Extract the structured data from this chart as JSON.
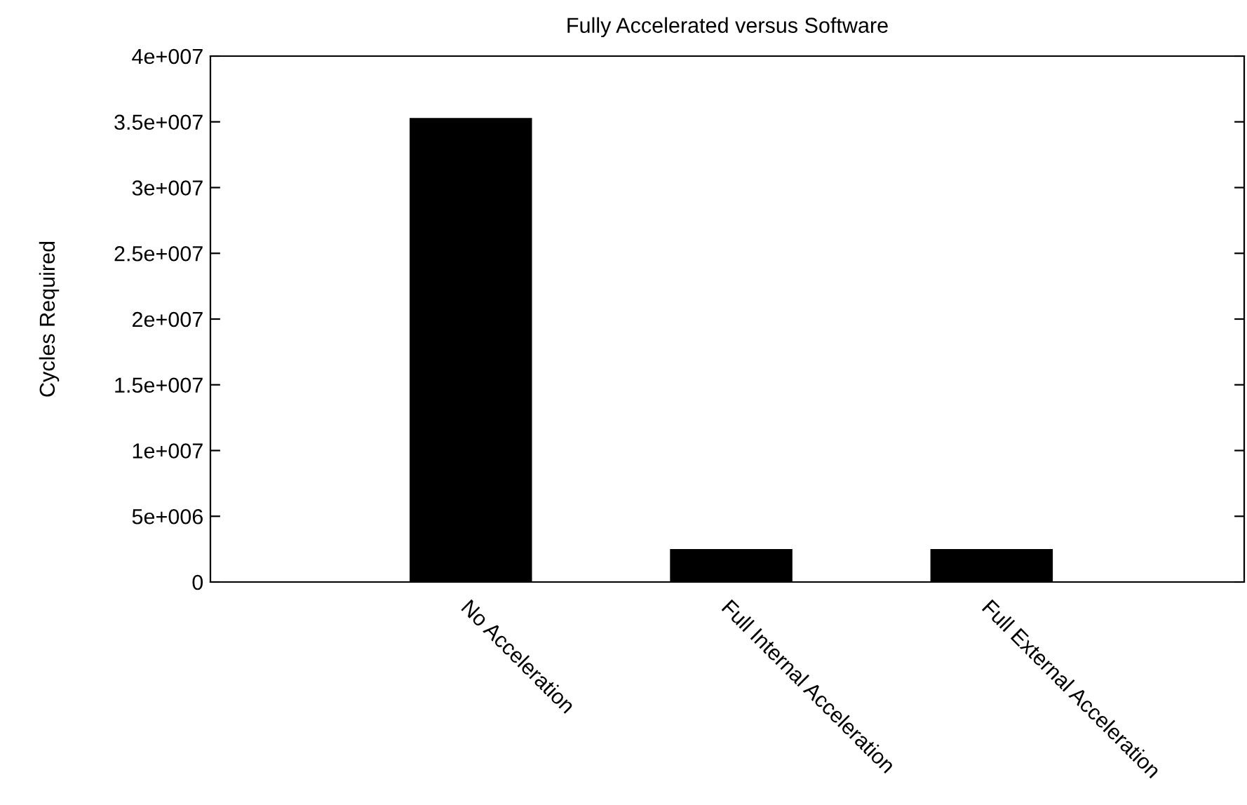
{
  "chart_data": {
    "type": "bar",
    "title": "Fully Accelerated versus Software",
    "ylabel": "Cycles Required",
    "categories": [
      "No Acceleration",
      "Full Internal Acceleration",
      "Full External Acceleration"
    ],
    "values": [
      35300000,
      2500000,
      2500000
    ],
    "color": "#000000",
    "ylim": [
      0,
      40000000
    ],
    "yticks": [
      {
        "value": 0,
        "label": "0"
      },
      {
        "value": 5000000,
        "label": "5e+006"
      },
      {
        "value": 10000000,
        "label": "1e+007"
      },
      {
        "value": 15000000,
        "label": "1.5e+007"
      },
      {
        "value": 20000000,
        "label": "2e+007"
      },
      {
        "value": 25000000,
        "label": "2.5e+007"
      },
      {
        "value": 30000000,
        "label": "3e+007"
      },
      {
        "value": 35000000,
        "label": "3.5e+007"
      },
      {
        "value": 40000000,
        "label": "4e+007"
      }
    ],
    "grid": false,
    "legend": false
  }
}
